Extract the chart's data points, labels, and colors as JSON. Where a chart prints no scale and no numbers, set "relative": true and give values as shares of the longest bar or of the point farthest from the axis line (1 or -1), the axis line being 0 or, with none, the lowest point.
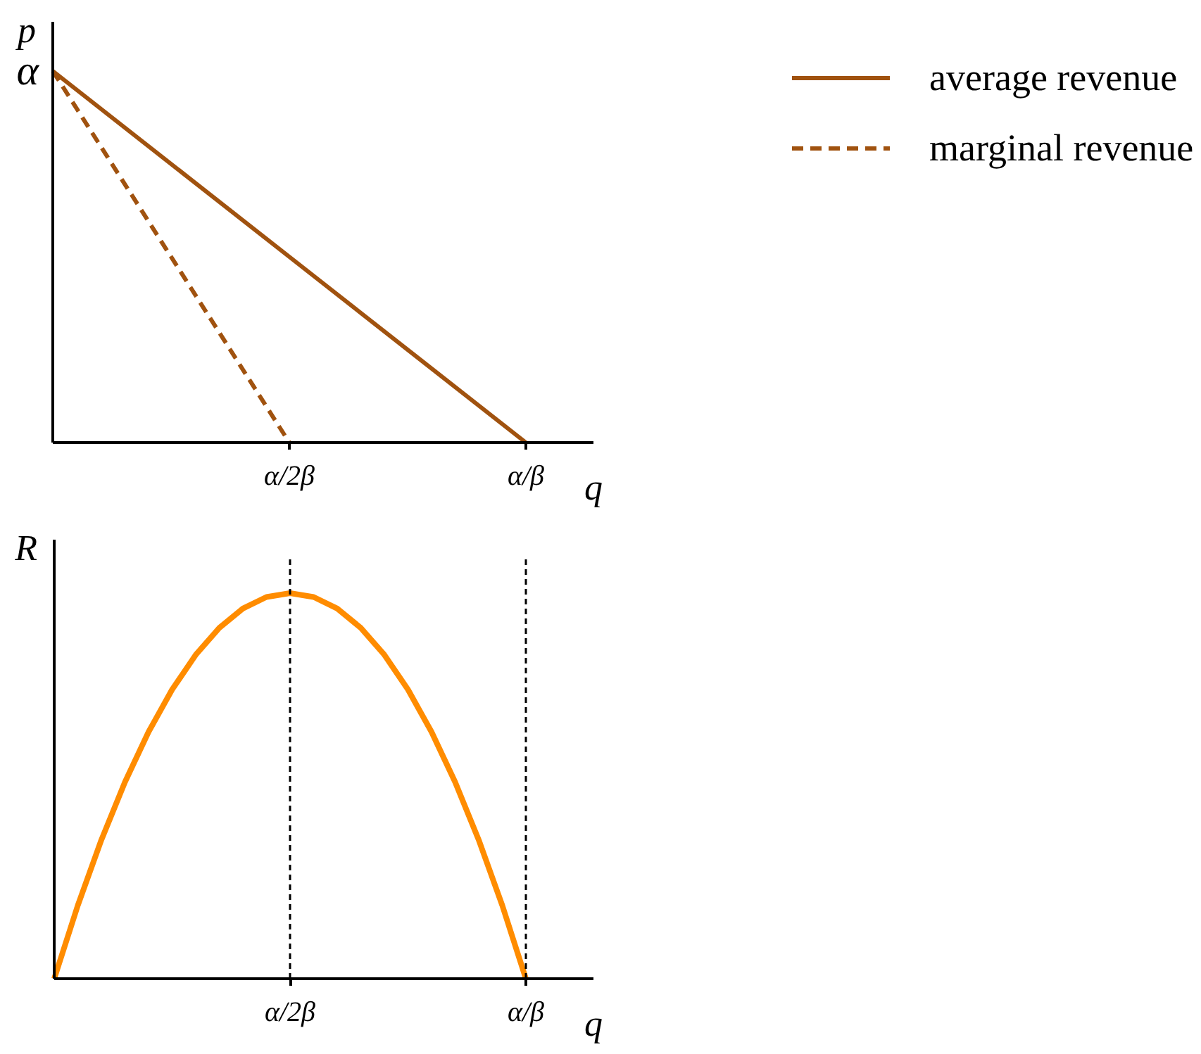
{
  "chart_data": [
    {
      "type": "line",
      "xlabel": "q",
      "ylabel": "p",
      "relative": true,
      "legend": "top right",
      "categories": [
        null,
        "α/2β",
        "α/β"
      ],
      "annotations": [
        "α"
      ],
      "series": [
        {
          "name": "average revenue",
          "color": "#a0520f",
          "values": [
            1,
            0.5,
            0
          ]
        },
        {
          "name": "marginal revenue",
          "color": "#a0520f",
          "values": [
            1,
            0,
            null
          ],
          "line_style": "dashed"
        }
      ]
    },
    {
      "type": "line",
      "xlabel": "q",
      "ylabel": "R",
      "relative": true,
      "categories": [
        null,
        null,
        null,
        null,
        null,
        null,
        null,
        null,
        null,
        null,
        "α/2β",
        null,
        null,
        null,
        null,
        null,
        null,
        null,
        null,
        null,
        "α/β"
      ],
      "series": [
        {
          "color": "#ff8c00",
          "values": [
            0,
            0.19,
            0.36,
            0.51,
            0.64,
            0.75,
            0.84,
            0.91,
            0.96,
            0.99,
            1,
            0.99,
            0.96,
            0.91,
            0.84,
            0.75,
            0.64,
            0.51,
            0.36,
            0.19,
            0
          ]
        }
      ],
      "ref_lines": [
        {
          "axis": "x",
          "value": "α/2β",
          "color": "#000000",
          "line_style": "dashed"
        },
        {
          "axis": "x",
          "value": "α/β",
          "color": "#000000",
          "line_style": "dashed"
        }
      ]
    }
  ]
}
